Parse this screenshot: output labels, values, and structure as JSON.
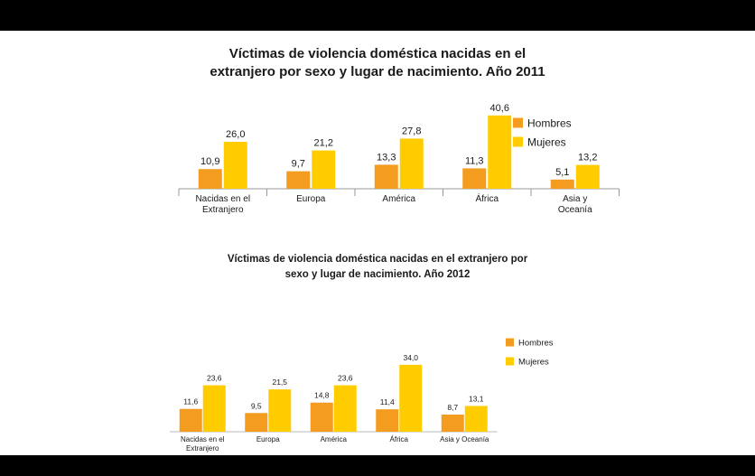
{
  "chart_data": [
    {
      "type": "bar",
      "title_line1": "Víctimas de violencia doméstica nacidas en el",
      "title_line2": "extranjero por sexo y lugar de nacimiento. Año 2011",
      "categories": [
        [
          "Nacidas en el",
          "Extranjero"
        ],
        [
          "Europa"
        ],
        [
          "América"
        ],
        [
          "África"
        ],
        [
          "Asia y",
          "Oceanía"
        ]
      ],
      "series": [
        {
          "name": "Hombres",
          "values": [
            10.9,
            9.7,
            13.3,
            11.3,
            5.1
          ],
          "labels": [
            "10,9",
            "9,7",
            "13,3",
            "11,3",
            "5,1"
          ],
          "color": "#f39c1f"
        },
        {
          "name": "Mujeres",
          "values": [
            26.0,
            21.2,
            27.8,
            40.6,
            13.2
          ],
          "labels": [
            "26,0",
            "21,2",
            "27,8",
            "40,6",
            "13,2"
          ],
          "color": "#ffcc00"
        }
      ],
      "legend_position": "right",
      "grid": false
    },
    {
      "type": "bar",
      "title_line1": "Víctimas de violencia doméstica nacidas en el extranjero por",
      "title_line2": "sexo y lugar de nacimiento. Año 2012",
      "categories": [
        [
          "Nacidas en el",
          "Extranjero"
        ],
        [
          "Europa"
        ],
        [
          "América"
        ],
        [
          "África"
        ],
        [
          "Asia y Oceanía"
        ]
      ],
      "series": [
        {
          "name": "Hombres",
          "values": [
            11.6,
            9.5,
            14.8,
            11.4,
            8.7
          ],
          "labels": [
            "11,6",
            "9,5",
            "14,8",
            "11,4",
            "8,7"
          ],
          "color": "#f39c1f"
        },
        {
          "name": "Mujeres",
          "values": [
            23.6,
            21.5,
            23.6,
            34.0,
            13.1
          ],
          "labels": [
            "23,6",
            "21,5",
            "23,6",
            "34,0",
            "13,1"
          ],
          "color": "#ffcc00"
        }
      ],
      "legend_position": "right",
      "grid": false
    }
  ]
}
